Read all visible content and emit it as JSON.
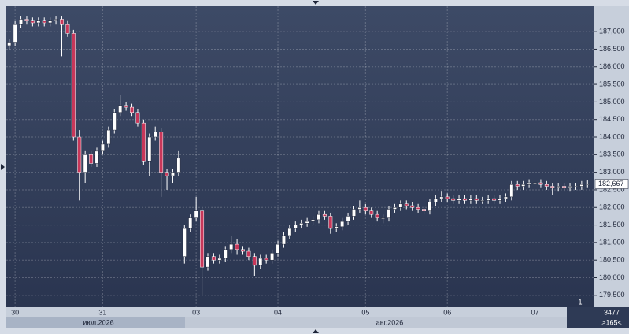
{
  "chart_data": {
    "type": "candlestick",
    "categories": [
      null,
      "30",
      null,
      null,
      null,
      null,
      null,
      null,
      null,
      null,
      null,
      null,
      null,
      null,
      null,
      null,
      "31",
      null,
      null,
      null,
      null,
      null,
      null,
      null,
      null,
      null,
      null,
      null,
      null,
      null,
      null,
      null,
      "03",
      null,
      null,
      null,
      null,
      null,
      null,
      null,
      null,
      null,
      null,
      null,
      null,
      null,
      "04",
      null,
      null,
      null,
      null,
      null,
      null,
      null,
      null,
      null,
      null,
      null,
      null,
      null,
      null,
      "05",
      null,
      null,
      null,
      null,
      null,
      null,
      null,
      null,
      null,
      null,
      null,
      null,
      null,
      "06",
      null,
      null,
      null,
      null,
      null,
      null,
      null,
      null,
      null,
      null,
      null,
      null,
      null,
      null,
      "07",
      null,
      null,
      null,
      null,
      null,
      null,
      null,
      null,
      null
    ],
    "open": [
      186600,
      186700,
      187200,
      187350,
      187300,
      187250,
      187300,
      187250,
      187300,
      187350,
      187200,
      186950,
      184000,
      183000,
      183500,
      183250,
      183600,
      183800,
      184200,
      184700,
      184900,
      184850,
      184700,
      184400,
      183300,
      184000,
      184150,
      183000,
      182900,
      183000,
      180600,
      181400,
      181700,
      181900,
      180300,
      180600,
      180500,
      180550,
      180800,
      180950,
      180800,
      180750,
      180600,
      180350,
      180550,
      180500,
      180700,
      180950,
      181200,
      181400,
      181500,
      181550,
      181600,
      181650,
      181800,
      181750,
      181400,
      181450,
      181600,
      181750,
      181950,
      182000,
      181900,
      181800,
      181700,
      181700,
      181950,
      182000,
      182100,
      182050,
      182000,
      181950,
      181900,
      182150,
      182250,
      182300,
      182250,
      182200,
      182250,
      182200,
      182250,
      182200,
      182200,
      182250,
      182200,
      182250,
      182300,
      182650,
      182600,
      182650,
      182700,
      182700,
      182650,
      182600,
      182550,
      182600,
      182550,
      182600,
      182600,
      182650
    ],
    "high": [
      186800,
      187300,
      187450,
      187450,
      187400,
      187400,
      187400,
      187400,
      187450,
      187450,
      187300,
      187050,
      184200,
      183600,
      183600,
      183700,
      183900,
      184300,
      184800,
      185200,
      185000,
      184950,
      184800,
      184500,
      184100,
      184300,
      184250,
      183100,
      183100,
      183600,
      181500,
      181800,
      182300,
      182000,
      180700,
      180700,
      180650,
      180900,
      181200,
      181100,
      180900,
      180850,
      180700,
      180650,
      180650,
      180800,
      181050,
      181300,
      181500,
      181600,
      181650,
      181700,
      181750,
      181900,
      181900,
      181850,
      181550,
      181700,
      181850,
      182050,
      182200,
      182100,
      182000,
      181900,
      181800,
      182050,
      182100,
      182200,
      182200,
      182150,
      182100,
      182050,
      182250,
      182350,
      182450,
      182400,
      182350,
      182350,
      182350,
      182350,
      182350,
      182300,
      182350,
      182350,
      182350,
      182400,
      182750,
      182750,
      182750,
      182800,
      182800,
      182800,
      182750,
      182700,
      182700,
      182700,
      182700,
      182700,
      182750,
      182767
    ],
    "low": [
      186500,
      186600,
      187100,
      187200,
      187150,
      187150,
      187150,
      187150,
      187200,
      186300,
      186850,
      183900,
      182200,
      182700,
      183150,
      183150,
      183500,
      183700,
      184100,
      184600,
      184750,
      184600,
      184300,
      183200,
      182900,
      183900,
      182300,
      182500,
      182700,
      182900,
      180400,
      181300,
      181600,
      179500,
      180200,
      180400,
      180400,
      180450,
      180700,
      180650,
      180650,
      180500,
      180050,
      180250,
      180400,
      180400,
      180600,
      180850,
      181100,
      181300,
      181400,
      181450,
      181500,
      181550,
      181650,
      181250,
      181300,
      181350,
      181500,
      181650,
      181850,
      181800,
      181700,
      181600,
      181550,
      181600,
      181850,
      181900,
      181950,
      181900,
      181850,
      181800,
      181800,
      182050,
      182150,
      182150,
      182100,
      182100,
      182100,
      182100,
      182100,
      182100,
      182100,
      182100,
      182100,
      182150,
      182200,
      182500,
      182500,
      182550,
      182600,
      182550,
      182500,
      182350,
      182450,
      182450,
      182450,
      182500,
      182500,
      182550
    ],
    "close": [
      186700,
      187200,
      187350,
      187300,
      187250,
      187300,
      187250,
      187300,
      187350,
      187200,
      186950,
      184000,
      183000,
      183500,
      183250,
      183600,
      183800,
      184200,
      184700,
      184900,
      184850,
      184700,
      184400,
      183300,
      184000,
      184150,
      183000,
      182900,
      183000,
      183400,
      181400,
      181700,
      181900,
      180300,
      180600,
      180500,
      180550,
      180800,
      180950,
      180800,
      180750,
      180600,
      180350,
      180550,
      180500,
      180700,
      180950,
      181200,
      181400,
      181500,
      181550,
      181600,
      181650,
      181800,
      181750,
      181400,
      181450,
      181600,
      181750,
      181950,
      182000,
      181900,
      181800,
      181700,
      181700,
      181950,
      182000,
      182100,
      182050,
      182000,
      181950,
      181900,
      182150,
      182250,
      182300,
      182250,
      182200,
      182250,
      182200,
      182250,
      182200,
      182200,
      182250,
      182200,
      182250,
      182300,
      182650,
      182600,
      182650,
      182700,
      182700,
      182650,
      182600,
      182550,
      182600,
      182550,
      182600,
      182600,
      182650,
      182667
    ],
    "up_color": "#ffffff",
    "down_color": "#c8375a",
    "ylim": [
      179160,
      187720
    ],
    "yticks": [
      {
        "value": 179500,
        "label": "179,500"
      },
      {
        "value": 180000,
        "label": "180,000"
      },
      {
        "value": 180500,
        "label": "180,500"
      },
      {
        "value": 181000,
        "label": "181,000"
      },
      {
        "value": 181500,
        "label": "181,500"
      },
      {
        "value": 182000,
        "label": "182,000"
      },
      {
        "value": 182500,
        "label": "182,500"
      },
      {
        "value": 183000,
        "label": "183,000"
      },
      {
        "value": 183500,
        "label": "183,500"
      },
      {
        "value": 184000,
        "label": "184,000"
      },
      {
        "value": 184500,
        "label": "184,500"
      },
      {
        "value": 185000,
        "label": "185,000"
      },
      {
        "value": 185500,
        "label": "185,500"
      },
      {
        "value": 186000,
        "label": "186,000"
      },
      {
        "value": 186500,
        "label": "186,500"
      },
      {
        "value": 187000,
        "label": "187,000"
      }
    ],
    "grid": true,
    "last_price": {
      "value": 182667,
      "label": "182,667"
    },
    "periods": [
      "июл.2026",
      "авг.2026"
    ],
    "status": {
      "pane": "1",
      "bars": "3477",
      "scroll": ">165<"
    }
  }
}
